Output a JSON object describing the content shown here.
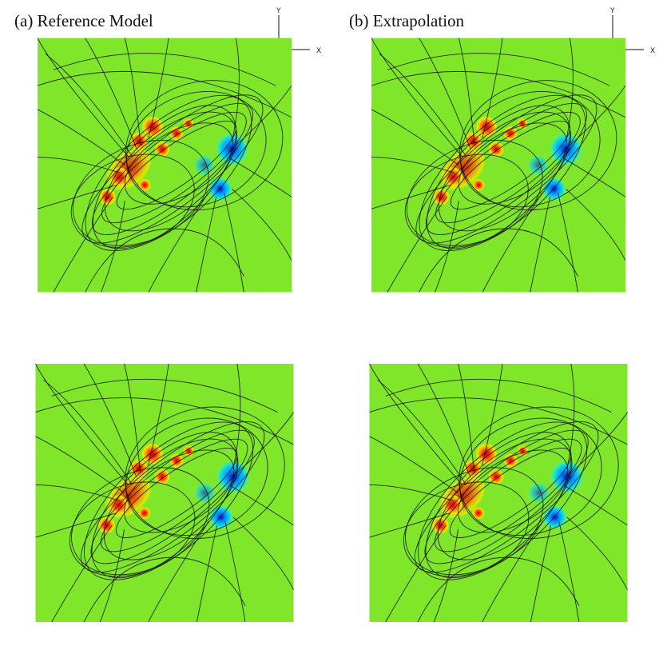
{
  "panels": [
    {
      "label": "(a) Reference Model",
      "axes": {
        "y": "Y",
        "x": "X"
      }
    },
    {
      "label": "(b) Extrapolation",
      "axes": {
        "y": "Y",
        "x": "X"
      }
    }
  ]
}
